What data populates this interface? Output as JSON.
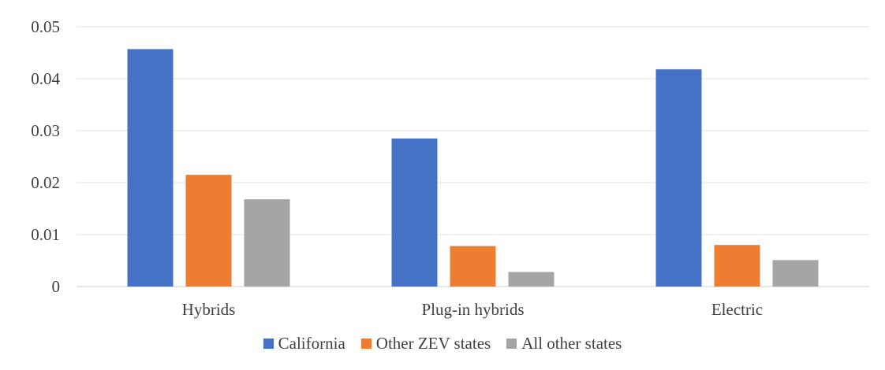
{
  "chart_data": {
    "type": "bar",
    "categories": [
      "Hybrids",
      "Plug-in hybrids",
      "Electric"
    ],
    "series": [
      {
        "name": "California",
        "color": "#4472C4",
        "values": [
          0.0457,
          0.0285,
          0.0418
        ]
      },
      {
        "name": "Other ZEV states",
        "color": "#ED7D31",
        "values": [
          0.0215,
          0.0078,
          0.008
        ]
      },
      {
        "name": "All other states",
        "color": "#A5A5A5",
        "values": [
          0.0168,
          0.0028,
          0.0051
        ]
      }
    ],
    "y_ticks": [
      "0",
      "0.01",
      "0.02",
      "0.03",
      "0.04",
      "0.05"
    ],
    "ylim": [
      0,
      0.05
    ],
    "grid": true,
    "legend_position": "bottom"
  }
}
